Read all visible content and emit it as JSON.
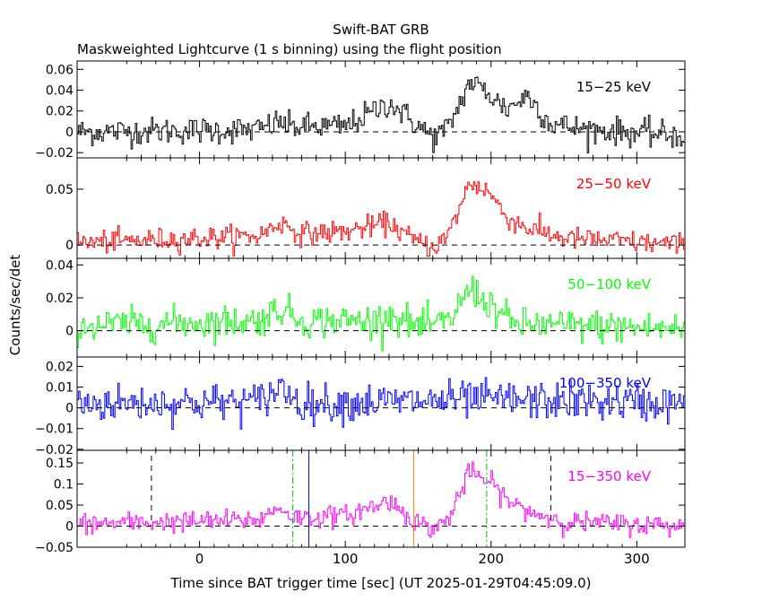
{
  "title": "Swift-BAT GRB",
  "subtitle": "Maskweighted Lightcurve (1 s binning) using the flight position",
  "ylabel": "Counts/sec/det",
  "xlabel": "Time since BAT trigger time [sec] (UT 2025-01-29T04:45:09.0)",
  "chart_data": {
    "type": "line",
    "title": "Swift-BAT GRB",
    "subtitle": "Maskweighted Lightcurve (1 s binning) using the flight position",
    "xlabel": "Time since BAT trigger time [sec] (UT 2025-01-29T04:45:09.0)",
    "ylabel": "Counts/sec/det",
    "xlim": [
      -84,
      333
    ],
    "x_ticks": [
      0,
      100,
      200,
      300
    ],
    "x_tick_labels": [
      "0",
      "100",
      "200",
      "300"
    ],
    "binning_sec": 1,
    "panels": [
      {
        "name": "15-25 keV",
        "label": "15−25 keV",
        "color": "#000000",
        "ylim": [
          -0.025,
          0.068
        ],
        "y_ticks": [
          -0.02,
          0,
          0.02,
          0.04,
          0.06
        ],
        "y_tick_labels": [
          "−0.02",
          "0",
          "0.02",
          "0.04",
          "0.06"
        ],
        "noise": 0.0065,
        "profile": [
          [
            -84,
            0.0
          ],
          [
            40,
            0.002
          ],
          [
            55,
            0.01
          ],
          [
            60,
            0.005
          ],
          [
            100,
            0.005
          ],
          [
            130,
            0.028
          ],
          [
            150,
            0.005
          ],
          [
            160,
            -0.005
          ],
          [
            170,
            0.003
          ],
          [
            185,
            0.048
          ],
          [
            195,
            0.04
          ],
          [
            210,
            0.022
          ],
          [
            225,
            0.035
          ],
          [
            240,
            0.008
          ],
          [
            260,
            0.003
          ],
          [
            333,
            -0.004
          ]
        ]
      },
      {
        "name": "25-50 keV",
        "label": "25−50 keV",
        "color": "#ff0000",
        "ylim": [
          -0.012,
          0.078
        ],
        "y_ticks": [
          0,
          0.05
        ],
        "y_tick_labels": [
          "0",
          "0.05"
        ],
        "noise": 0.005,
        "profile": [
          [
            -84,
            0.002
          ],
          [
            40,
            0.008
          ],
          [
            55,
            0.02
          ],
          [
            70,
            0.01
          ],
          [
            100,
            0.012
          ],
          [
            130,
            0.02
          ],
          [
            145,
            0.005
          ],
          [
            160,
            -0.002
          ],
          [
            170,
            0.008
          ],
          [
            185,
            0.056
          ],
          [
            198,
            0.048
          ],
          [
            210,
            0.025
          ],
          [
            225,
            0.015
          ],
          [
            250,
            0.006
          ],
          [
            333,
            0.0
          ]
        ]
      },
      {
        "name": "50-100 keV",
        "label": "50−100 keV",
        "color": "#00ff00",
        "ylim": [
          -0.016,
          0.044
        ],
        "y_ticks": [
          0,
          0.02,
          0.04
        ],
        "y_tick_labels": [
          "0",
          "0.02",
          "0.04"
        ],
        "noise": 0.005,
        "profile": [
          [
            -84,
            0.003
          ],
          [
            40,
            0.006
          ],
          [
            55,
            0.014
          ],
          [
            70,
            0.006
          ],
          [
            120,
            0.006
          ],
          [
            130,
            0.01
          ],
          [
            150,
            0.002
          ],
          [
            170,
            0.005
          ],
          [
            185,
            0.026
          ],
          [
            200,
            0.015
          ],
          [
            215,
            0.004
          ],
          [
            333,
            0.001
          ]
        ]
      },
      {
        "name": "100-350 keV",
        "label": "100−350 keV",
        "color": "#0000ff",
        "ylim": [
          -0.0205,
          0.0245
        ],
        "y_ticks": [
          -0.02,
          -0.01,
          0,
          0.01,
          0.02
        ],
        "y_tick_labels": [
          "−0.02",
          "−0.01",
          "0",
          "0.01",
          "0.02"
        ],
        "noise": 0.0045,
        "profile": [
          [
            -84,
            0.002
          ],
          [
            40,
            0.003
          ],
          [
            55,
            0.01
          ],
          [
            70,
            0.002
          ],
          [
            200,
            0.004
          ],
          [
            333,
            0.002
          ]
        ]
      },
      {
        "name": "15-350 keV",
        "label": "15−350 keV",
        "color": "#ff00ff",
        "ylim": [
          -0.05,
          0.18
        ],
        "y_ticks": [
          -0.05,
          0,
          0.05,
          0.1,
          0.15
        ],
        "y_tick_labels": [
          "−0.05",
          "0",
          "0.05",
          "0.1",
          "0.15"
        ],
        "noise": 0.012,
        "profile": [
          [
            -84,
            0.005
          ],
          [
            40,
            0.015
          ],
          [
            55,
            0.045
          ],
          [
            65,
            0.02
          ],
          [
            100,
            0.025
          ],
          [
            130,
            0.06
          ],
          [
            150,
            0.005
          ],
          [
            160,
            -0.005
          ],
          [
            170,
            0.015
          ],
          [
            185,
            0.13
          ],
          [
            200,
            0.1
          ],
          [
            215,
            0.05
          ],
          [
            230,
            0.03
          ],
          [
            250,
            0.01
          ],
          [
            333,
            0.0
          ]
        ],
        "markers": [
          {
            "name": "black-dashed-left",
            "x": -33,
            "color": "#000000",
            "style": "dash"
          },
          {
            "name": "green-dashdot-left",
            "x": 64,
            "color": "#00c000",
            "style": "dashdot"
          },
          {
            "name": "blue-solid",
            "x": 75,
            "color": "#0000ff",
            "style": "solid"
          },
          {
            "name": "orange-solid",
            "x": 147,
            "color": "#ff8000",
            "style": "solid"
          },
          {
            "name": "green-dashdot-right",
            "x": 197,
            "color": "#00c000",
            "style": "dashdot"
          },
          {
            "name": "black-dashed-right",
            "x": 241,
            "color": "#000000",
            "style": "dash"
          }
        ]
      }
    ]
  }
}
